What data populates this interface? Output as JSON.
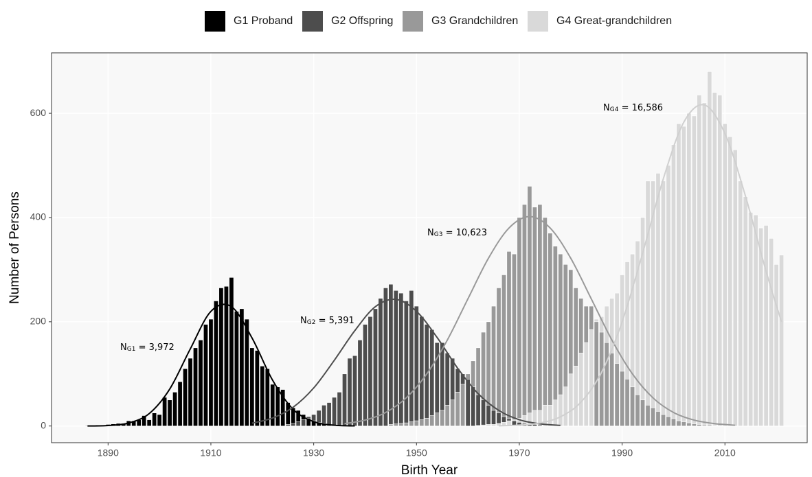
{
  "chart_data": {
    "type": "histogram",
    "xlabel": "Birth Year",
    "ylabel": "Number of Persons",
    "xlim": [
      1879,
      2026
    ],
    "ylim": [
      -32,
      716
    ],
    "xticks": [
      1890,
      1910,
      1930,
      1950,
      1970,
      1990,
      2010
    ],
    "yticks": [
      0,
      200,
      400,
      600
    ],
    "grid": true,
    "legend": "top",
    "series": [
      {
        "name": "G1 Proband",
        "color": "#000000",
        "x": [
          1886,
          1887,
          1888,
          1889,
          1890,
          1891,
          1892,
          1893,
          1894,
          1895,
          1896,
          1897,
          1898,
          1899,
          1900,
          1901,
          1902,
          1903,
          1904,
          1905,
          1906,
          1907,
          1908,
          1909,
          1910,
          1911,
          1912,
          1913,
          1914,
          1915,
          1916,
          1917,
          1918,
          1919,
          1920,
          1921,
          1922,
          1923,
          1924,
          1925,
          1926,
          1927,
          1928,
          1929,
          1930,
          1931,
          1932
        ],
        "values": [
          1,
          1,
          2,
          2,
          3,
          4,
          5,
          5,
          10,
          10,
          12,
          20,
          12,
          25,
          22,
          55,
          50,
          65,
          85,
          110,
          130,
          150,
          165,
          195,
          205,
          240,
          265,
          268,
          285,
          220,
          225,
          205,
          150,
          145,
          115,
          110,
          80,
          75,
          70,
          45,
          35,
          30,
          22,
          15,
          10,
          7,
          5
        ],
        "curve": {
          "x": [
            1886,
            1890,
            1894,
            1898,
            1902,
            1906,
            1910,
            1914,
            1918,
            1922,
            1926,
            1930,
            1934,
            1938
          ],
          "y": [
            0.1,
            1,
            5.7,
            23.8,
            71,
            148,
            220,
            229,
            169,
            88,
            32,
            8.4,
            1.5,
            0.2
          ]
        },
        "annotation": {
          "text": "N",
          "sub": "G1",
          "rest": " = 3,972"
        }
      },
      {
        "name": "G2 Offspring",
        "color": "#4d4d4d",
        "x": [
          1925,
          1926,
          1927,
          1928,
          1929,
          1930,
          1931,
          1932,
          1933,
          1934,
          1935,
          1936,
          1937,
          1938,
          1939,
          1940,
          1941,
          1942,
          1943,
          1944,
          1945,
          1946,
          1947,
          1948,
          1949,
          1950,
          1951,
          1952,
          1953,
          1954,
          1955,
          1956,
          1957,
          1958,
          1959,
          1960,
          1961,
          1962,
          1963,
          1964,
          1965,
          1966,
          1967,
          1968,
          1969,
          1970,
          1971,
          1972,
          1973,
          1974,
          1975
        ],
        "values": [
          3,
          5,
          8,
          12,
          18,
          22,
          30,
          40,
          45,
          55,
          65,
          100,
          130,
          135,
          165,
          195,
          210,
          225,
          245,
          265,
          272,
          260,
          255,
          240,
          260,
          230,
          210,
          195,
          185,
          160,
          160,
          140,
          130,
          110,
          100,
          90,
          75,
          60,
          50,
          40,
          30,
          25,
          18,
          14,
          10,
          7,
          5,
          4,
          3,
          2,
          1
        ],
        "curve": {
          "x": [
            1918,
            1922,
            1926,
            1930,
            1934,
            1938,
            1942,
            1946,
            1950,
            1954,
            1958,
            1962,
            1966,
            1970,
            1974,
            1978
          ],
          "y": [
            5.5,
            15.3,
            36,
            73,
            126,
            183,
            229,
            243,
            220,
            170,
            111,
            62,
            30,
            12,
            4.2,
            1.2
          ]
        },
        "annotation": {
          "text": "N",
          "sub": "G2",
          "rest": " = 5,391"
        }
      },
      {
        "name": "G3 Grandchildren",
        "color": "#999999",
        "x": [
          1945,
          1946,
          1947,
          1948,
          1949,
          1950,
          1951,
          1952,
          1953,
          1954,
          1955,
          1956,
          1957,
          1958,
          1959,
          1960,
          1961,
          1962,
          1963,
          1964,
          1965,
          1966,
          1967,
          1968,
          1969,
          1970,
          1971,
          1972,
          1973,
          1974,
          1975,
          1976,
          1977,
          1978,
          1979,
          1980,
          1981,
          1982,
          1983,
          1984,
          1985,
          1986,
          1987,
          1988,
          1989,
          1990,
          1991,
          1992,
          1993,
          1994,
          1995,
          1996,
          1997,
          1998,
          1999,
          2000,
          2001,
          2002,
          2003,
          2004,
          2005,
          2006,
          2007,
          2008
        ],
        "values": [
          3,
          4,
          5,
          6,
          8,
          10,
          12,
          15,
          20,
          25,
          30,
          40,
          50,
          65,
          80,
          100,
          125,
          150,
          180,
          200,
          230,
          265,
          290,
          335,
          330,
          400,
          425,
          460,
          420,
          425,
          400,
          370,
          345,
          330,
          310,
          300,
          265,
          245,
          230,
          230,
          200,
          180,
          160,
          140,
          120,
          105,
          90,
          75,
          60,
          50,
          40,
          35,
          28,
          22,
          18,
          14,
          10,
          8,
          6,
          4,
          3,
          2,
          2,
          1
        ],
        "curve": {
          "x": [
            1936,
            1940,
            1944,
            1948,
            1952,
            1956,
            1960,
            1964,
            1968,
            1972,
            1976,
            1980,
            1984,
            1988,
            1992,
            1996,
            2000,
            2004,
            2008,
            2012
          ],
          "y": [
            4.5,
            11.4,
            26,
            54,
            100,
            165,
            244,
            322,
            380,
            402,
            380,
            322,
            244,
            165,
            100,
            54,
            26,
            11.4,
            4.5,
            1.5
          ]
        },
        "annotation": {
          "text": "N",
          "sub": "G3",
          "rest": " = 10,623"
        }
      },
      {
        "name": "G4 Great-grandchildren",
        "color": "#d9d9d9",
        "x": [
          1962,
          1963,
          1964,
          1965,
          1966,
          1967,
          1968,
          1969,
          1970,
          1971,
          1972,
          1973,
          1974,
          1975,
          1976,
          1977,
          1978,
          1979,
          1980,
          1981,
          1982,
          1983,
          1984,
          1985,
          1986,
          1987,
          1988,
          1989,
          1990,
          1991,
          1992,
          1993,
          1994,
          1995,
          1996,
          1997,
          1998,
          1999,
          2000,
          2001,
          2002,
          2003,
          2004,
          2005,
          2006,
          2007,
          2008,
          2009,
          2010,
          2011,
          2012,
          2013,
          2014,
          2015,
          2016,
          2017,
          2018,
          2019,
          2020,
          2021
        ],
        "values": [
          1,
          2,
          3,
          3,
          5,
          7,
          10,
          12,
          15,
          20,
          25,
          30,
          30,
          40,
          40,
          50,
          60,
          75,
          100,
          115,
          140,
          160,
          185,
          205,
          210,
          230,
          245,
          255,
          290,
          315,
          330,
          355,
          400,
          470,
          470,
          485,
          470,
          500,
          540,
          580,
          575,
          600,
          595,
          635,
          620,
          680,
          640,
          635,
          580,
          555,
          530,
          470,
          440,
          410,
          405,
          380,
          385,
          360,
          310,
          328
        ],
        "curve": {
          "x": [
            1966,
            1970,
            1974,
            1978,
            1982,
            1986,
            1990,
            1994,
            1998,
            2002,
            2006,
            2010,
            2014,
            2018,
            2021
          ],
          "y": [
            0.4,
            1.7,
            5.8,
            17.7,
            46,
            103,
            200,
            332,
            474,
            583,
            616,
            561,
            441,
            297,
            200
          ]
        },
        "annotation": {
          "text": "N",
          "sub": "G4",
          "rest": " = 16,586"
        }
      }
    ]
  }
}
